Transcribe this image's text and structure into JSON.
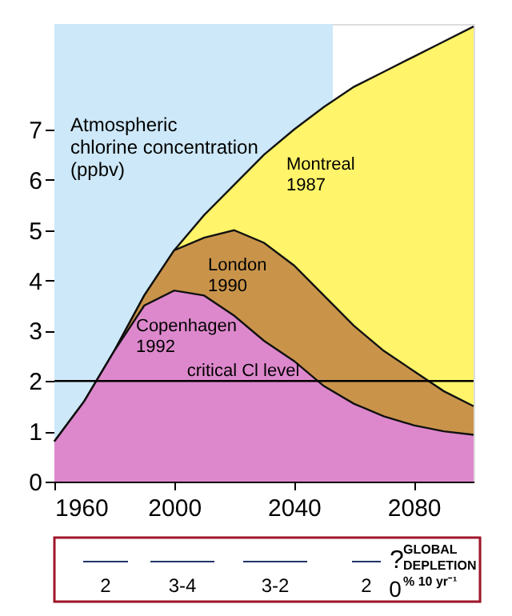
{
  "chart_data": {
    "type": "area",
    "x": [
      1960,
      1970,
      1980,
      1990,
      2000,
      2010,
      2020,
      2030,
      2040,
      2050,
      2060,
      2070,
      2080,
      2090,
      2100
    ],
    "series": [
      {
        "name": "Montreal\n1987",
        "color": "#fff46a",
        "values": [
          0.8,
          1.6,
          2.6,
          3.7,
          4.6,
          5.3,
          5.9,
          6.5,
          7.0,
          7.45,
          7.85,
          8.15,
          8.45,
          8.75,
          9.05
        ]
      },
      {
        "name": "London\n1990",
        "color": "#c9944a",
        "values": [
          0.8,
          1.6,
          2.6,
          3.7,
          4.6,
          4.85,
          5.0,
          4.75,
          4.3,
          3.7,
          3.1,
          2.6,
          2.2,
          1.8,
          1.5
        ]
      },
      {
        "name": "Copenhagen\n1992",
        "color": "#dd88cc",
        "values": [
          0.8,
          1.6,
          2.6,
          3.5,
          3.8,
          3.7,
          3.3,
          2.8,
          2.4,
          1.9,
          1.55,
          1.3,
          1.12,
          1.0,
          0.93
        ]
      }
    ],
    "xlim": [
      1960,
      2100
    ],
    "xticks": [
      1960,
      2000,
      2040,
      2080
    ],
    "ylim": [
      0,
      9.1
    ],
    "yticks": [
      0,
      1,
      2,
      3,
      4,
      5,
      6,
      7
    ],
    "ref_lines": [
      {
        "axis": "y",
        "value": 2,
        "label": "critical Cl level",
        "color": "#000000"
      }
    ],
    "bands": [
      {
        "axis": "x",
        "from": 1960,
        "to": 2053,
        "color": "#cde8f8"
      }
    ],
    "annotations": [
      "Atmospheric\nchlorine concentration\n(ppbv)",
      "2",
      "3-4",
      "3-2",
      "2",
      "0",
      "?",
      "GLOBAL\nDEPLETION\n% 10 yr⁻¹"
    ],
    "grid": false,
    "legend": false
  }
}
